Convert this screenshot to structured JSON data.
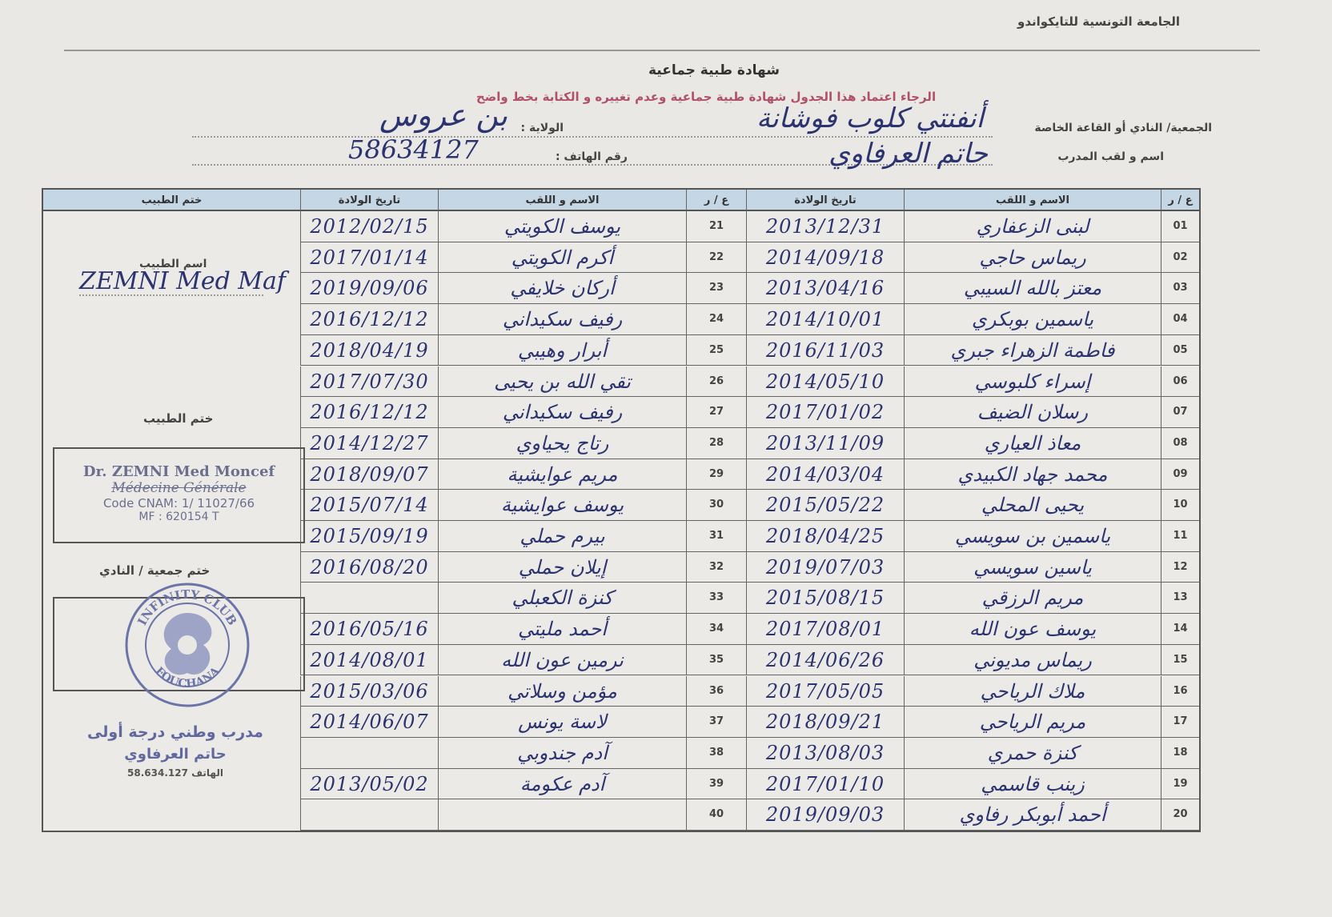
{
  "federation": "الجامعة التونسية للتايكواندو",
  "title": "شهادة طبية جماعية",
  "notice": "الرجاء اعتماد هذا الجدول شهادة طبية جماعية وعدم تغييره و الكتابة بخط واضح",
  "form": {
    "club_label": "الجمعية/ النادي أو القاعة الخاصة",
    "club_value": "أنفنتي كلوب فوشانة",
    "state_label": "الولاية :",
    "state_value": "بن عروس",
    "coach_label": "اسم و لقب المدرب",
    "coach_value": "حاتم العرفاوي",
    "phone_label": "رقم الهاتف :",
    "phone_value": "58634127"
  },
  "table": {
    "headers": {
      "num": "ع / ر",
      "name": "الاسم و اللقب",
      "dob": "تاريخ الولادة",
      "doctor": "ختم الطبيب"
    },
    "rows": [
      {
        "num": "01",
        "name": "لبنى الزعفاري",
        "dob": "2013/12/31"
      },
      {
        "num": "02",
        "name": "ريماس حاجي",
        "dob": "2014/09/18"
      },
      {
        "num": "03",
        "name": "معتز بالله السيبي",
        "dob": "2013/04/16"
      },
      {
        "num": "04",
        "name": "ياسمين بوبكري",
        "dob": "2014/10/01"
      },
      {
        "num": "05",
        "name": "فاطمة الزهراء جبري",
        "dob": "2016/11/03"
      },
      {
        "num": "06",
        "name": "إسراء كلبوسي",
        "dob": "2014/05/10"
      },
      {
        "num": "07",
        "name": "رسلان الضيف",
        "dob": "2017/01/02"
      },
      {
        "num": "08",
        "name": "معاذ العياري",
        "dob": "2013/11/09"
      },
      {
        "num": "09",
        "name": "محمد جهاد الكبيدي",
        "dob": "2014/03/04"
      },
      {
        "num": "10",
        "name": "يحيى المحلي",
        "dob": "2015/05/22"
      },
      {
        "num": "11",
        "name": "ياسمين بن سويسي",
        "dob": "2018/04/25"
      },
      {
        "num": "12",
        "name": "ياسين سويسي",
        "dob": "2019/07/03"
      },
      {
        "num": "13",
        "name": "مريم الرزقي",
        "dob": "2015/08/15"
      },
      {
        "num": "14",
        "name": "يوسف عون الله",
        "dob": "2017/08/01"
      },
      {
        "num": "15",
        "name": "ريماس مديوني",
        "dob": "2014/06/26"
      },
      {
        "num": "16",
        "name": "ملاك الرياحي",
        "dob": "2017/05/05"
      },
      {
        "num": "17",
        "name": "مريم الرياحي",
        "dob": "2018/09/21"
      },
      {
        "num": "18",
        "name": "كنزة حمري",
        "dob": "2013/08/03"
      },
      {
        "num": "19",
        "name": "زينب قاسمي",
        "dob": "2017/01/10"
      },
      {
        "num": "20",
        "name": "أحمد أبوبكر رفاوي",
        "dob": "2019/09/03"
      },
      {
        "num": "21",
        "name": "يوسف الكويتي",
        "dob": "2012/02/15"
      },
      {
        "num": "22",
        "name": "أكرم الكويتي",
        "dob": "2017/01/14"
      },
      {
        "num": "23",
        "name": "أركان خلايفي",
        "dob": "2019/09/06"
      },
      {
        "num": "24",
        "name": "رفيف سكيداني",
        "dob": "2016/12/12"
      },
      {
        "num": "25",
        "name": "أبرار وهيبي",
        "dob": "2018/04/19"
      },
      {
        "num": "26",
        "name": "تقي الله بن يحيى",
        "dob": "2017/07/30"
      },
      {
        "num": "27",
        "name": "رفيف سكيداني",
        "dob": "2016/12/12"
      },
      {
        "num": "28",
        "name": "رتاج يحياوي",
        "dob": "2014/12/27"
      },
      {
        "num": "29",
        "name": "مريم عوايشية",
        "dob": "2018/09/07"
      },
      {
        "num": "30",
        "name": "يوسف عوايشية",
        "dob": "2015/07/14"
      },
      {
        "num": "31",
        "name": "بيرم حملي",
        "dob": "2015/09/19"
      },
      {
        "num": "32",
        "name": "إيلان حملي",
        "dob": "2016/08/20"
      },
      {
        "num": "33",
        "name": "كنزة الكعبلي",
        "dob": ""
      },
      {
        "num": "34",
        "name": "أحمد مليتي",
        "dob": "2016/05/16"
      },
      {
        "num": "35",
        "name": "نرمين عون الله",
        "dob": "2014/08/01"
      },
      {
        "num": "36",
        "name": "مؤمن وسلاتي",
        "dob": "2015/03/06"
      },
      {
        "num": "37",
        "name": "لاسة يونس",
        "dob": "2014/06/07"
      },
      {
        "num": "38",
        "name": "آدم جندوبي",
        "dob": ""
      },
      {
        "num": "39",
        "name": "آدم عكومة",
        "dob": "2013/05/02"
      },
      {
        "num": "40",
        "name": "",
        "dob": ""
      }
    ]
  },
  "doctor_panel": {
    "doctor_name_label": "اسم الطبيب",
    "doctor_name_value": "ZEMNI Med Maf",
    "doctor_stamp_label": "ختم الطبيب",
    "stamp_line1": "Dr. ZEMNI Med Moncef",
    "stamp_line2": "Médecine Générale",
    "stamp_line3": "Code CNAM: 1/ 11027/66",
    "stamp_line4": "MF : 620154 T",
    "club_stamp_label": "ختم جمعية / النادي",
    "club_stamp_top": "INFINITY CLUB",
    "club_stamp_bottom": "FOUCHANA",
    "coach_title": "مدرب وطني درجة أولى",
    "coach_name": "حاتم العرفاوي",
    "coach_phone": "الهاتف 58.634.127"
  },
  "colors": {
    "header_fill": "#c5d6e4",
    "ink": "#2b3470",
    "notice": "#b0506a",
    "stamp": "#6b6f8f"
  }
}
